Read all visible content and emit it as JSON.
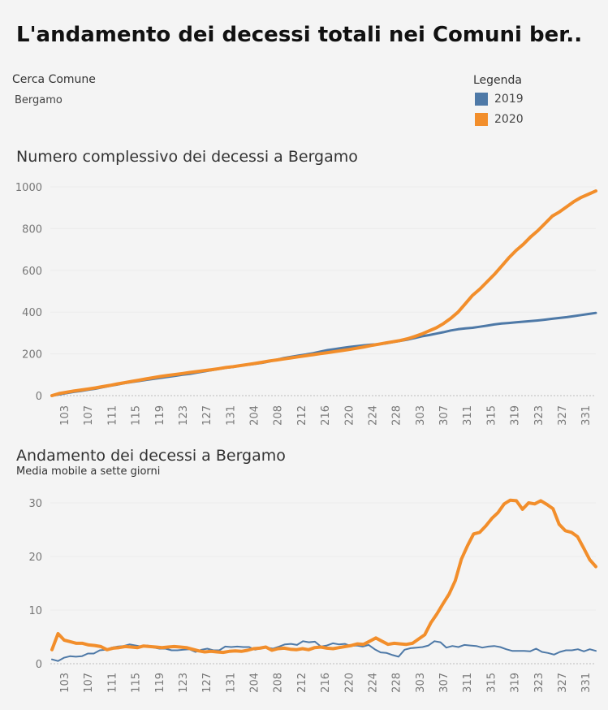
{
  "header": {
    "title": "L'andamento dei decessi totali nei Comuni ber..",
    "filter_label": "Cerca Comune",
    "filter_value": "Bergamo"
  },
  "legend": {
    "title": "Legenda",
    "items": [
      {
        "label": "2019",
        "color": "#4e79a7"
      },
      {
        "label": "2020",
        "color": "#f28e2b"
      }
    ]
  },
  "chart_data": [
    {
      "type": "line",
      "title": "Numero complessivo dei decessi a Bergamo",
      "xlabel": "",
      "ylabel": "",
      "ylim": [
        0,
        1000
      ],
      "yticks": [
        0,
        200,
        400,
        600,
        800,
        1000
      ],
      "xticks": [
        "103",
        "107",
        "111",
        "115",
        "119",
        "123",
        "127",
        "131",
        "204",
        "208",
        "212",
        "216",
        "220",
        "224",
        "228",
        "303",
        "307",
        "311",
        "315",
        "319",
        "323",
        "327",
        "331"
      ],
      "grid": true,
      "series": [
        {
          "name": "2019",
          "color": "#4e79a7",
          "values": [
            0,
            6,
            12,
            18,
            22,
            28,
            33,
            40,
            47,
            53,
            60,
            65,
            70,
            75,
            80,
            85,
            90,
            95,
            100,
            104,
            110,
            116,
            122,
            128,
            133,
            137,
            143,
            148,
            152,
            157,
            164,
            172,
            180,
            186,
            192,
            197,
            203,
            211,
            218,
            223,
            228,
            233,
            237,
            241,
            244,
            246,
            250,
            256,
            262,
            268,
            276,
            284,
            290,
            297,
            304,
            312,
            318,
            322,
            325,
            330,
            335,
            341,
            345,
            348,
            351,
            354,
            357,
            360,
            364,
            368,
            372,
            376,
            381,
            386,
            391,
            396
          ]
        },
        {
          "name": "2020",
          "color": "#f28e2b",
          "values": [
            0,
            10,
            16,
            22,
            27,
            32,
            37,
            43,
            49,
            56,
            62,
            68,
            74,
            80,
            86,
            92,
            97,
            101,
            106,
            111,
            115,
            120,
            124,
            129,
            135,
            139,
            144,
            149,
            154,
            160,
            166,
            171,
            176,
            181,
            186,
            191,
            196,
            201,
            206,
            211,
            216,
            221,
            227,
            233,
            240,
            246,
            252,
            258,
            264,
            272,
            283,
            295,
            310,
            325,
            345,
            370,
            400,
            440,
            480,
            510,
            545,
            580,
            620,
            660,
            695,
            725,
            760,
            790,
            825,
            860,
            880,
            905,
            930,
            950,
            965,
            980
          ]
        }
      ]
    },
    {
      "type": "line",
      "title": "Andamento dei decessi a Bergamo",
      "subtitle": "Media mobile a sette giorni",
      "xlabel": "",
      "ylabel": "",
      "ylim": [
        0,
        32
      ],
      "yticks": [
        0,
        10,
        20,
        30
      ],
      "xticks": [
        "103",
        "107",
        "111",
        "115",
        "119",
        "123",
        "127",
        "131",
        "204",
        "208",
        "212",
        "216",
        "220",
        "224",
        "228",
        "303",
        "307",
        "311",
        "315",
        "319",
        "323",
        "327",
        "331"
      ],
      "grid": true,
      "series": [
        {
          "name": "2019",
          "color": "#4e79a7",
          "values": [
            0.8,
            0.5,
            1.1,
            1.4,
            1.3,
            1.4,
            1.9,
            1.9,
            2.5,
            2.6,
            3.0,
            3.2,
            3.3,
            3.6,
            3.4,
            3.2,
            3.4,
            3.0,
            2.8,
            2.8,
            2.5,
            2.5,
            2.6,
            2.7,
            2.2,
            2.6,
            2.8,
            2.5,
            2.5,
            3.2,
            3.1,
            3.2,
            3.1,
            3.1,
            2.6,
            2.9,
            3.0,
            2.8,
            3.2,
            3.6,
            3.7,
            3.5,
            4.2,
            4.0,
            4.1,
            3.2,
            3.4,
            3.8,
            3.6,
            3.7,
            3.3,
            3.4,
            3.2,
            3.5,
            2.7,
            2.1,
            2.0,
            1.6,
            1.3,
            2.6,
            2.9,
            3.0,
            3.1,
            3.4,
            4.2,
            4.0,
            3.0,
            3.3,
            3.1,
            3.5,
            3.4,
            3.3,
            3.0,
            3.2,
            3.3,
            3.1,
            2.7,
            2.4,
            2.4,
            2.4,
            2.3,
            2.8,
            2.2,
            2.0,
            1.7,
            2.2,
            2.5,
            2.5,
            2.7,
            2.3,
            2.7,
            2.4
          ]
        },
        {
          "name": "2020",
          "color": "#f28e2b",
          "values": [
            2.6,
            5.6,
            4.4,
            4.1,
            3.8,
            3.8,
            3.5,
            3.4,
            3.2,
            2.6,
            2.9,
            3.0,
            3.2,
            3.1,
            3.0,
            3.3,
            3.2,
            3.1,
            3.0,
            3.1,
            3.2,
            3.1,
            3.0,
            2.7,
            2.4,
            2.2,
            2.3,
            2.2,
            2.1,
            2.3,
            2.4,
            2.3,
            2.5,
            2.8,
            2.9,
            3.1,
            2.5,
            2.8,
            2.9,
            2.7,
            2.6,
            2.8,
            2.6,
            3.0,
            3.1,
            2.9,
            2.8,
            3.0,
            3.2,
            3.4,
            3.7,
            3.6,
            4.2,
            4.8,
            4.2,
            3.6,
            3.8,
            3.7,
            3.6,
            3.8,
            4.6,
            5.4,
            7.6,
            9.3,
            11.2,
            13.0,
            15.5,
            19.5,
            22.0,
            24.2,
            24.5,
            25.7,
            27.1,
            28.2,
            29.8,
            30.5,
            30.4,
            28.8,
            30.0,
            29.8,
            30.4,
            29.7,
            28.9,
            26.0,
            24.8,
            24.5,
            23.7,
            21.6,
            19.4,
            18.1
          ]
        }
      ]
    }
  ]
}
